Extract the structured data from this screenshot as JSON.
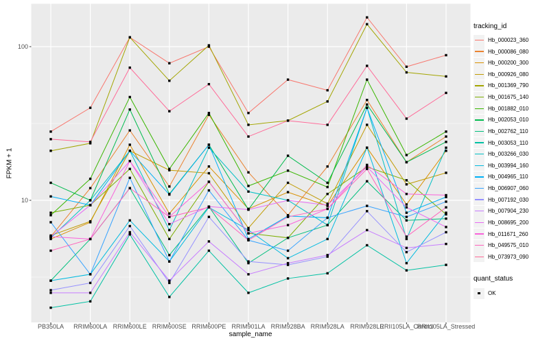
{
  "chart_data": {
    "type": "line",
    "title": "",
    "xlabel": "sample_name",
    "ylabel": "FPKM + 1",
    "y_scale": "log10",
    "y_ticks": [
      100,
      10
    ],
    "y_tick_labels": [
      "100",
      "10"
    ],
    "y_minor_ticks": [
      31.623,
      3.1623
    ],
    "ylim": [
      1.6,
      190
    ],
    "grid": true,
    "legend_position": "right",
    "panel_bg": "#EBEBEB",
    "grid_color": "#FFFFFF",
    "tick_color": "#333333",
    "marker_color": "#000000",
    "marker_shape": "square",
    "legend_title": "tracking_id",
    "point_legend": {
      "title": "quant_status",
      "items": [
        "OK"
      ]
    },
    "categories": [
      "PB350LA",
      "RRIM600LA",
      "RRIM600LE",
      "RRIM600SE",
      "RRIM600PE",
      "RRIM901LA",
      "RRIM928BA",
      "RRIM928LA",
      "RRIM928LE",
      "RRII105LA_Control",
      "RRII105LA_Stressed"
    ],
    "series": [
      {
        "name": "Hb_000023_360",
        "color": "#F8766D",
        "values": [
          28,
          40,
          115,
          78,
          100,
          37,
          61,
          52,
          155,
          74,
          88
        ]
      },
      {
        "name": "Hb_000086_080",
        "color": "#EA8331",
        "values": [
          5.8,
          12,
          28.5,
          12.3,
          36,
          15.2,
          8.0,
          16.6,
          45,
          17.7,
          26
        ]
      },
      {
        "name": "Hb_000200_300",
        "color": "#D89000",
        "values": [
          5.6,
          7.2,
          23,
          8.2,
          16.6,
          8.8,
          11.3,
          9.2,
          22,
          9.4,
          21
        ]
      },
      {
        "name": "Hb_000926_080",
        "color": "#C09B00",
        "values": [
          5.9,
          7.3,
          21,
          15.7,
          15,
          6.6,
          13,
          9.5,
          31,
          12.7,
          15.1
        ]
      },
      {
        "name": "Hb_001369_790",
        "color": "#A3A500",
        "values": [
          21,
          23.5,
          115,
          60,
          102,
          31,
          33,
          44,
          140,
          68,
          64
        ]
      },
      {
        "name": "Hb_001675_140",
        "color": "#7CAE00",
        "values": [
          8.3,
          9.3,
          16,
          5.6,
          13.2,
          6.1,
          5.7,
          11,
          16.5,
          13.5,
          8.1
        ]
      },
      {
        "name": "Hb_001882_010",
        "color": "#39B600",
        "values": [
          8.0,
          13.8,
          47,
          16,
          37,
          12.4,
          15.6,
          12.2,
          61,
          19.7,
          28
        ]
      },
      {
        "name": "Hb_002053_010",
        "color": "#00BB4E",
        "values": [
          13,
          10,
          39,
          11,
          23,
          8.7,
          19.5,
          13,
          42,
          17.7,
          24
        ]
      },
      {
        "name": "Hb_002762_110",
        "color": "#00BF7D",
        "values": [
          3.0,
          5.6,
          12,
          4.4,
          9.1,
          3.9,
          5.7,
          6.9,
          13.3,
          7.4,
          7.6
        ]
      },
      {
        "name": "Hb_003053_110",
        "color": "#00C1A3",
        "values": [
          2.0,
          2.2,
          6.0,
          2.35,
          4.7,
          2.5,
          3.1,
          3.35,
          5.1,
          3.5,
          3.8
        ]
      },
      {
        "name": "Hb_003266_030",
        "color": "#00BFC4",
        "values": [
          5.7,
          10,
          21,
          6.4,
          22,
          11.4,
          10,
          6.9,
          40,
          5.6,
          22
        ]
      },
      {
        "name": "Hb_003994_160",
        "color": "#00BAE0",
        "values": [
          3.0,
          3.3,
          7.4,
          4.0,
          9.0,
          6.4,
          4.2,
          5.6,
          22,
          3.9,
          8.3
        ]
      },
      {
        "name": "Hb_004965_110",
        "color": "#00B0F6",
        "values": [
          10.6,
          9.3,
          21,
          10.9,
          23,
          5.6,
          7.9,
          7.7,
          40,
          8.3,
          10.5
        ]
      },
      {
        "name": "Hb_006907_060",
        "color": "#35A2FF",
        "values": [
          7.2,
          3.3,
          14,
          4.0,
          11.6,
          5.5,
          4.7,
          7.7,
          9.2,
          7.8,
          9.8
        ]
      },
      {
        "name": "Hb_007192_030",
        "color": "#9590FF",
        "values": [
          2.6,
          2.9,
          6.8,
          2.9,
          7.8,
          4.0,
          3.8,
          4.3,
          8.5,
          4.6,
          6.2
        ]
      },
      {
        "name": "Hb_007904_230",
        "color": "#C77CFF",
        "values": [
          2.5,
          2.5,
          6.2,
          3.0,
          5.4,
          3.3,
          3.9,
          4.4,
          6.4,
          4.9,
          5.2
        ]
      },
      {
        "name": "Hb_008695_200",
        "color": "#E76BF3",
        "values": [
          5.8,
          9.3,
          18,
          7.0,
          9.1,
          8.7,
          10,
          9.3,
          16.5,
          9.0,
          6.7
        ]
      },
      {
        "name": "Hb_011671_260",
        "color": "#FA62DB",
        "values": [
          5.8,
          5.6,
          18,
          7.8,
          13.2,
          6.1,
          6.9,
          8.8,
          17,
          11,
          10.8
        ]
      },
      {
        "name": "Hb_049575_010",
        "color": "#FF62BC",
        "values": [
          4.7,
          5.6,
          12,
          7.8,
          9.0,
          5.5,
          7.8,
          8.8,
          16,
          5.8,
          9.0
        ]
      },
      {
        "name": "Hb_073973_090",
        "color": "#FF6A98",
        "values": [
          25,
          24,
          73,
          38,
          57,
          26,
          33,
          31,
          75,
          34,
          50
        ]
      }
    ]
  }
}
